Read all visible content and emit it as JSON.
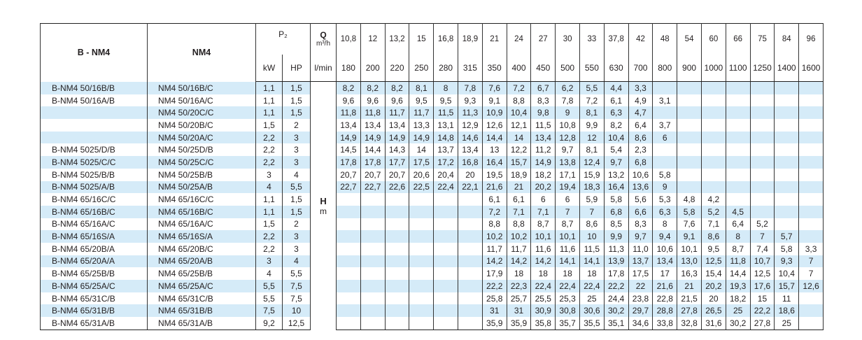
{
  "header": {
    "col_bnm4": "B - NM4",
    "col_nm4": "NM4",
    "power_label": "P₂",
    "kw": "kW",
    "hp": "HP",
    "q_label": "Q",
    "q_unit": "m³/h",
    "lmin_unit": "l/min",
    "h_label": "H",
    "h_unit": "m",
    "q_m3h": [
      "10,8",
      "12",
      "13,2",
      "15",
      "16,8",
      "18,9",
      "21",
      "24",
      "27",
      "30",
      "33",
      "37,8",
      "42",
      "48",
      "54",
      "60",
      "66",
      "75",
      "84",
      "96"
    ],
    "q_lmin": [
      "180",
      "200",
      "220",
      "250",
      "280",
      "315",
      "350",
      "400",
      "450",
      "500",
      "550",
      "630",
      "700",
      "800",
      "900",
      "1000",
      "1100",
      "1250",
      "1400",
      "1600"
    ]
  },
  "colors": {
    "stripe": "#d5ebf8",
    "border": "#333333"
  },
  "rows": [
    {
      "bnm4": "B-NM4 50/16B/B",
      "nm4": "NM4 50/16B/C",
      "kw": "1,1",
      "hp": "1,5",
      "h": [
        "8,2",
        "8,2",
        "8,2",
        "8,1",
        "8",
        "7,8",
        "7,6",
        "7,2",
        "6,7",
        "6,2",
        "5,5",
        "4,4",
        "3,3",
        "",
        "",
        "",
        "",
        "",
        "",
        ""
      ]
    },
    {
      "bnm4": "B-NM4 50/16A/B",
      "nm4": "NM4 50/16A/C",
      "kw": "1,1",
      "hp": "1,5",
      "h": [
        "9,6",
        "9,6",
        "9,6",
        "9,5",
        "9,5",
        "9,3",
        "9,1",
        "8,8",
        "8,3",
        "7,8",
        "7,2",
        "6,1",
        "4,9",
        "3,1",
        "",
        "",
        "",
        "",
        "",
        ""
      ]
    },
    {
      "bnm4": "",
      "nm4": "NM4 50/20C/C",
      "kw": "1,1",
      "hp": "1,5",
      "h": [
        "11,8",
        "11,8",
        "11,7",
        "11,7",
        "11,5",
        "11,3",
        "10,9",
        "10,4",
        "9,8",
        "9",
        "8,1",
        "6,3",
        "4,7",
        "",
        "",
        "",
        "",
        "",
        "",
        ""
      ]
    },
    {
      "bnm4": "",
      "nm4": "NM4 50/20B/C",
      "kw": "1,5",
      "hp": "2",
      "h": [
        "13,4",
        "13,4",
        "13,4",
        "13,3",
        "13,1",
        "12,9",
        "12,6",
        "12,1",
        "11,5",
        "10,8",
        "9,9",
        "8,2",
        "6,4",
        "3,7",
        "",
        "",
        "",
        "",
        "",
        ""
      ]
    },
    {
      "bnm4": "",
      "nm4": "NM4 50/20A/C",
      "kw": "2,2",
      "hp": "3",
      "h": [
        "14,9",
        "14,9",
        "14,9",
        "14,9",
        "14,8",
        "14,6",
        "14,4",
        "14",
        "13,4",
        "12,8",
        "12",
        "10,4",
        "8,6",
        "6",
        "",
        "",
        "",
        "",
        "",
        ""
      ]
    },
    {
      "bnm4": "B-NM4 5025/D/B",
      "nm4": "NM4 50/25D/B",
      "kw": "2,2",
      "hp": "3",
      "h": [
        "14,5",
        "14,4",
        "14,3",
        "14",
        "13,7",
        "13,4",
        "13",
        "12,2",
        "11,2",
        "9,7",
        "8,1",
        "5,4",
        "2,3",
        "",
        "",
        "",
        "",
        "",
        "",
        ""
      ]
    },
    {
      "bnm4": "B-NM4 5025/C/C",
      "nm4": "NM4 50/25C/C",
      "kw": "2,2",
      "hp": "3",
      "h": [
        "17,8",
        "17,8",
        "17,7",
        "17,5",
        "17,2",
        "16,8",
        "16,4",
        "15,7",
        "14,9",
        "13,8",
        "12,4",
        "9,7",
        "6,8",
        "",
        "",
        "",
        "",
        "",
        "",
        ""
      ]
    },
    {
      "bnm4": "B-NM4 5025/B/B",
      "nm4": "NM4 50/25B/B",
      "kw": "3",
      "hp": "4",
      "h": [
        "20,7",
        "20,7",
        "20,7",
        "20,6",
        "20,4",
        "20",
        "19,5",
        "18,9",
        "18,2",
        "17,1",
        "15,9",
        "13,2",
        "10,6",
        "5,8",
        "",
        "",
        "",
        "",
        "",
        ""
      ]
    },
    {
      "bnm4": "B-NM4 5025/A/B",
      "nm4": "NM4 50/25A/B",
      "kw": "4",
      "hp": "5,5",
      "h": [
        "22,7",
        "22,7",
        "22,6",
        "22,5",
        "22,4",
        "22,1",
        "21,6",
        "21",
        "20,2",
        "19,4",
        "18,3",
        "16,4",
        "13,6",
        "9",
        "",
        "",
        "",
        "",
        "",
        ""
      ]
    },
    {
      "bnm4": "B-NM4 65/16C/C",
      "nm4": "NM4 65/16C/C",
      "kw": "1,1",
      "hp": "1,5",
      "h": [
        "",
        "",
        "",
        "",
        "",
        "",
        "6,1",
        "6,1",
        "6",
        "6",
        "5,9",
        "5,8",
        "5,6",
        "5,3",
        "4,8",
        "4,2",
        "",
        "",
        "",
        ""
      ]
    },
    {
      "bnm4": "B-NM4 65/16B/C",
      "nm4": "NM4 65/16B/C",
      "kw": "1,1",
      "hp": "1,5",
      "h": [
        "",
        "",
        "",
        "",
        "",
        "",
        "7,2",
        "7,1",
        "7,1",
        "7",
        "7",
        "6,8",
        "6,6",
        "6,3",
        "5,8",
        "5,2",
        "4,5",
        "",
        "",
        ""
      ]
    },
    {
      "bnm4": "B-NM4 65/16A/C",
      "nm4": "NM4 65/16A/C",
      "kw": "1,5",
      "hp": "2",
      "h": [
        "",
        "",
        "",
        "",
        "",
        "",
        "8,8",
        "8,8",
        "8,7",
        "8,7",
        "8,6",
        "8,5",
        "8,3",
        "8",
        "7,6",
        "7,1",
        "6,4",
        "5,2",
        "",
        ""
      ]
    },
    {
      "bnm4": "B-NM4 65/16S/A",
      "nm4": "NM4 65/16S/A",
      "kw": "2,2",
      "hp": "3",
      "h": [
        "",
        "",
        "",
        "",
        "",
        "",
        "10,2",
        "10,2",
        "10,1",
        "10,1",
        "10",
        "9,9",
        "9,7",
        "9,4",
        "9,1",
        "8,6",
        "8",
        "7",
        "5,7",
        ""
      ]
    },
    {
      "bnm4": "B-NM4 65/20B/A",
      "nm4": "NM4 65/20B/C",
      "kw": "2,2",
      "hp": "3",
      "h": [
        "",
        "",
        "",
        "",
        "",
        "",
        "11,7",
        "11,7",
        "11,6",
        "11,6",
        "11,5",
        "11,3",
        "11,0",
        "10,6",
        "10,1",
        "9,5",
        "8,7",
        "7,4",
        "5,8",
        "3,3"
      ]
    },
    {
      "bnm4": "B-NM4 65/20A/A",
      "nm4": "NM4 65/20A/B",
      "kw": "3",
      "hp": "4",
      "h": [
        "",
        "",
        "",
        "",
        "",
        "",
        "14,2",
        "14,2",
        "14,2",
        "14,1",
        "14,1",
        "13,9",
        "13,7",
        "13,4",
        "13,0",
        "12,5",
        "11,8",
        "10,7",
        "9,3",
        "7"
      ]
    },
    {
      "bnm4": "B-NM4 65/25B/B",
      "nm4": "NM4 65/25B/B",
      "kw": "4",
      "hp": "5,5",
      "h": [
        "",
        "",
        "",
        "",
        "",
        "",
        "17,9",
        "18",
        "18",
        "18",
        "18",
        "17,8",
        "17,5",
        "17",
        "16,3",
        "15,4",
        "14,4",
        "12,5",
        "10,4",
        "7"
      ]
    },
    {
      "bnm4": "B-NM4 65/25A/C",
      "nm4": "NM4 65/25A/C",
      "kw": "5,5",
      "hp": "7,5",
      "h": [
        "",
        "",
        "",
        "",
        "",
        "",
        "22,2",
        "22,3",
        "22,4",
        "22,4",
        "22,4",
        "22,2",
        "22",
        "21,6",
        "21",
        "20,2",
        "19,3",
        "17,6",
        "15,7",
        "12,6"
      ]
    },
    {
      "bnm4": "B-NM4 65/31C/B",
      "nm4": "NM4 65/31C/B",
      "kw": "5,5",
      "hp": "7,5",
      "h": [
        "",
        "",
        "",
        "",
        "",
        "",
        "25,8",
        "25,7",
        "25,5",
        "25,3",
        "25",
        "24,4",
        "23,8",
        "22,8",
        "21,5",
        "20",
        "18,2",
        "15",
        "11",
        ""
      ]
    },
    {
      "bnm4": "B-NM4 65/31B/B",
      "nm4": "NM4 65/31B/B",
      "kw": "7,5",
      "hp": "10",
      "h": [
        "",
        "",
        "",
        "",
        "",
        "",
        "31",
        "31",
        "30,9",
        "30,8",
        "30,6",
        "30,2",
        "29,7",
        "28,8",
        "27,8",
        "26,5",
        "25",
        "22,2",
        "18,6",
        ""
      ]
    },
    {
      "bnm4": "B-NM4 65/31A/B",
      "nm4": "NM4 65/31A/B",
      "kw": "9,2",
      "hp": "12,5",
      "h": [
        "",
        "",
        "",
        "",
        "",
        "",
        "35,9",
        "35,9",
        "35,8",
        "35,7",
        "35,5",
        "35,1",
        "34,6",
        "33,8",
        "32,8",
        "31,6",
        "30,2",
        "27,8",
        "25",
        ""
      ]
    }
  ]
}
